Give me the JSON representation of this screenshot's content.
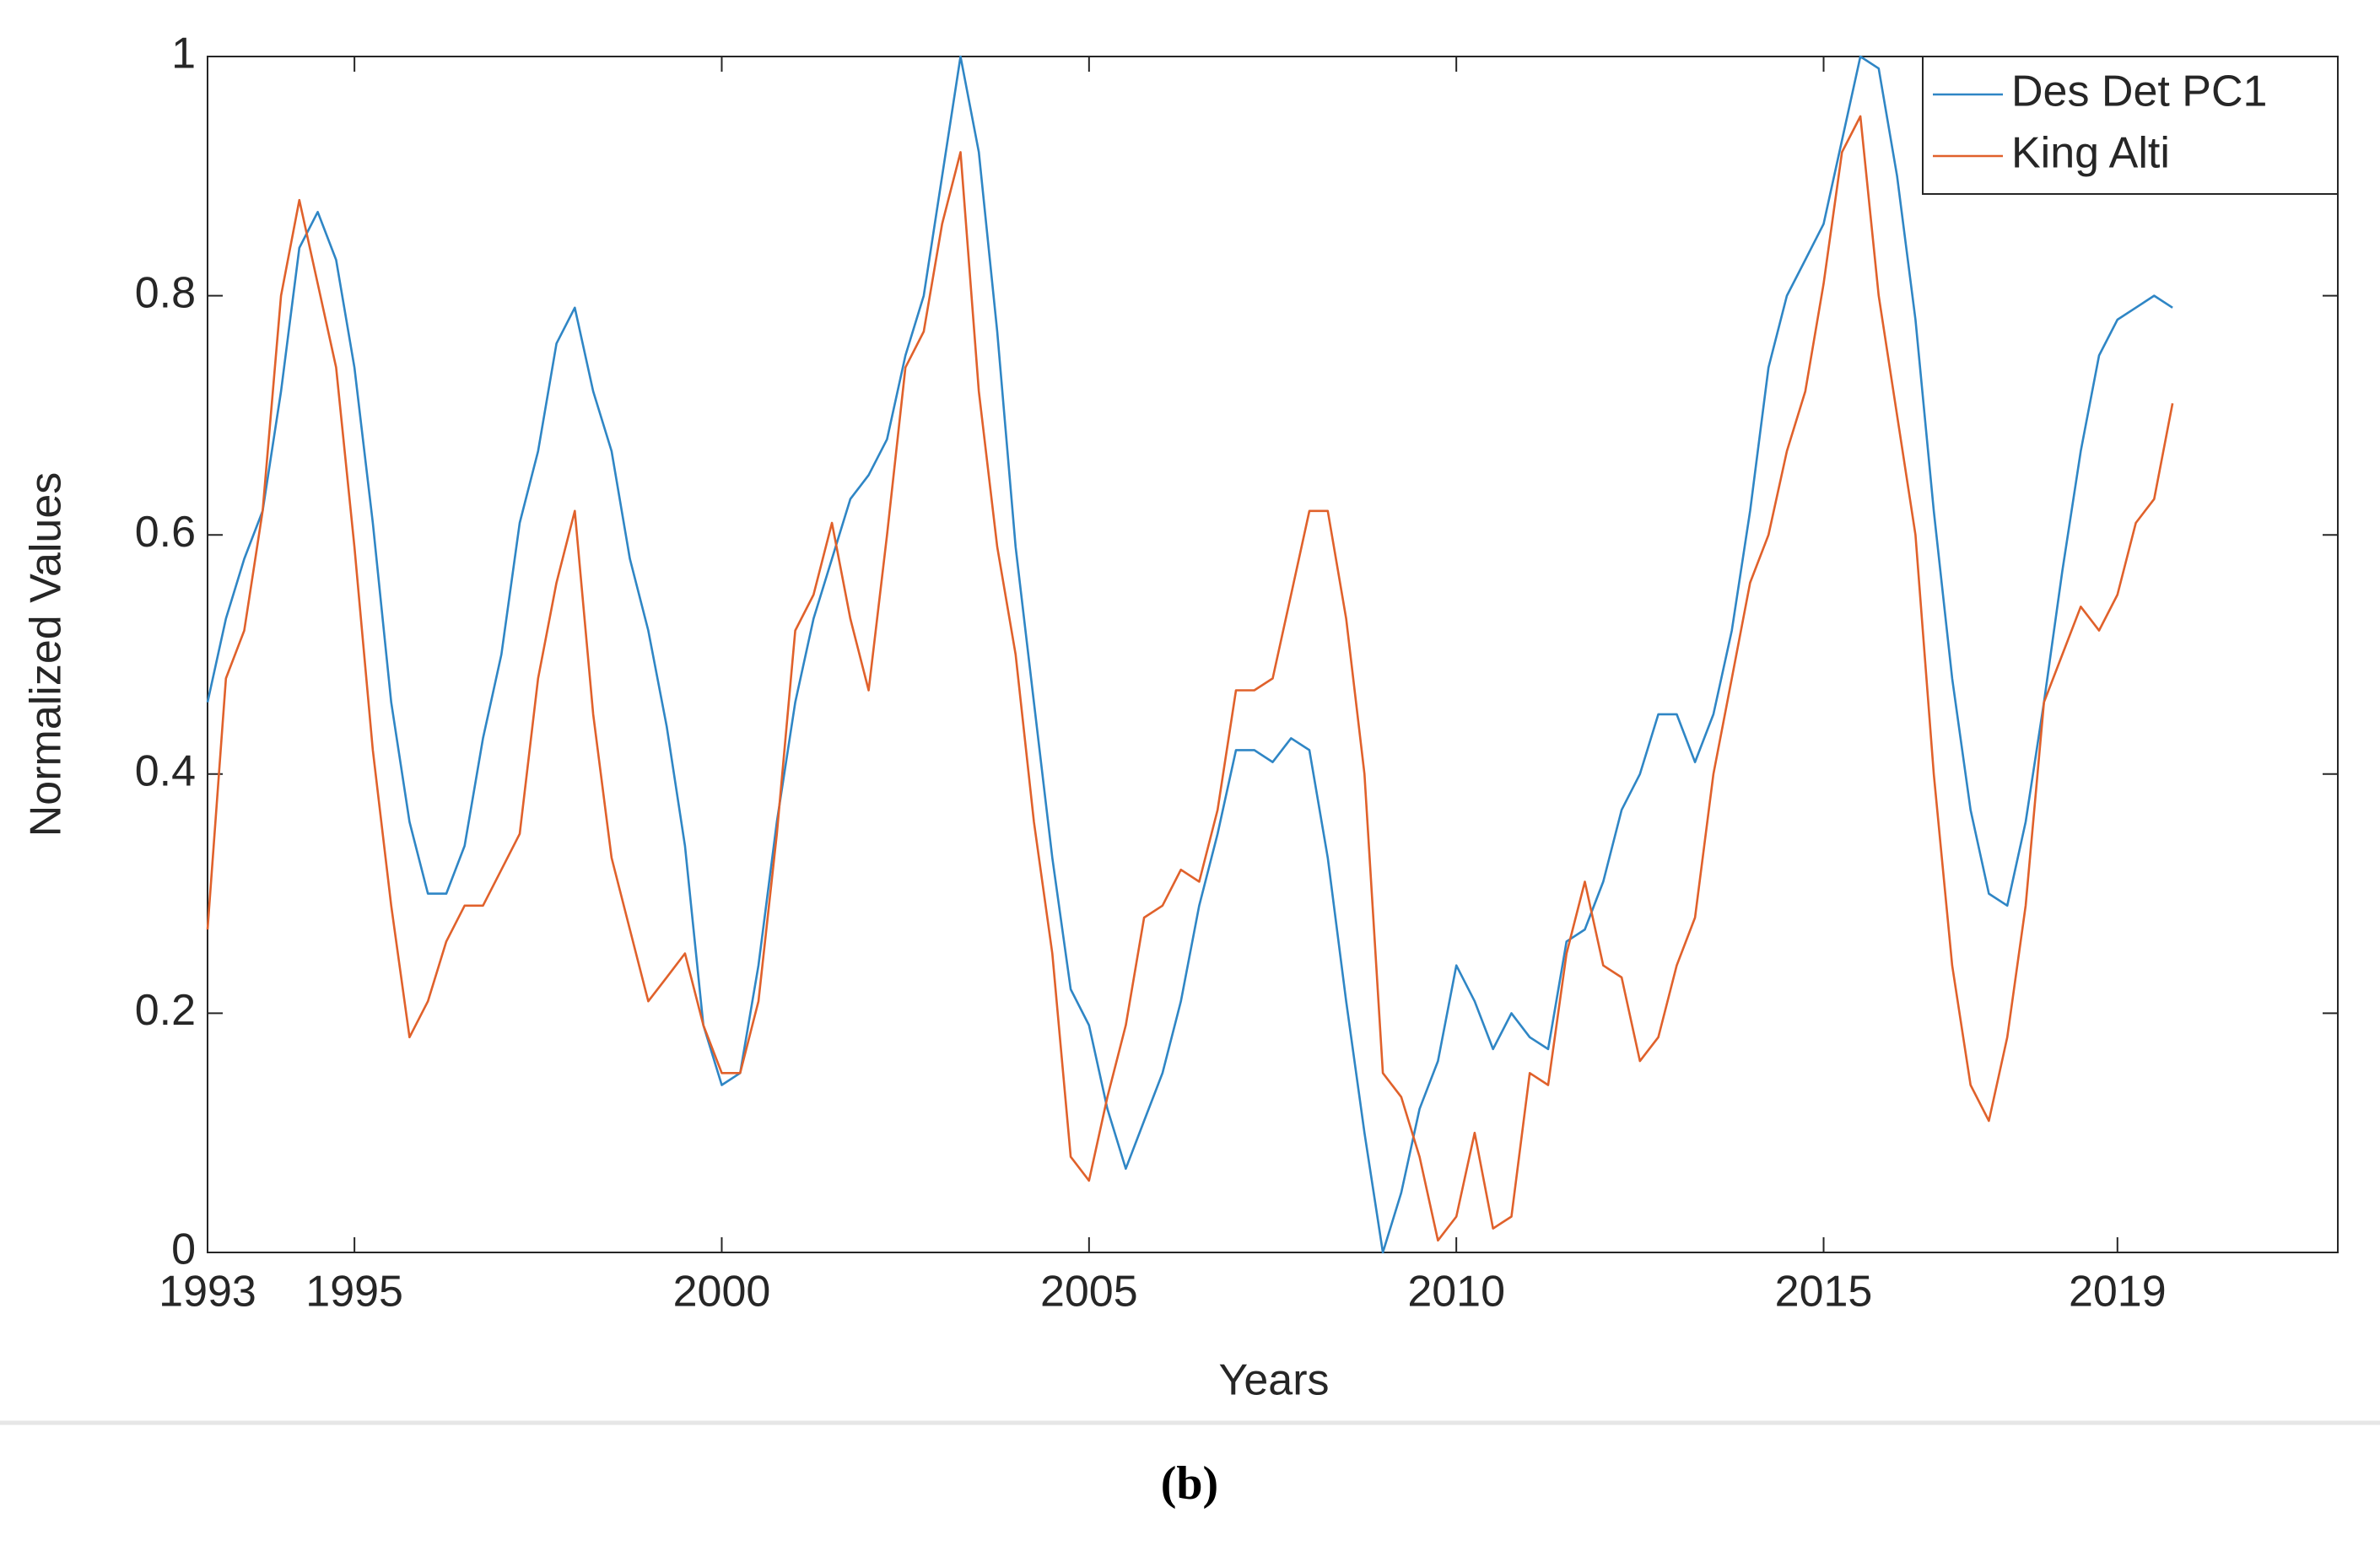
{
  "chart_data": {
    "type": "line",
    "x_label": "Years",
    "y_label": "Normalized Values",
    "caption": "(b)",
    "x": [
      1993,
      1993.25,
      1993.5,
      1993.75,
      1994,
      1994.25,
      1994.5,
      1994.75,
      1995,
      1995.25,
      1995.5,
      1995.75,
      1996,
      1996.25,
      1996.5,
      1996.75,
      1997,
      1997.25,
      1997.5,
      1997.75,
      1998,
      1998.25,
      1998.5,
      1998.75,
      1999,
      1999.25,
      1999.5,
      1999.75,
      2000,
      2000.25,
      2000.5,
      2000.75,
      2001,
      2001.25,
      2001.5,
      2001.75,
      2002,
      2002.25,
      2002.5,
      2002.75,
      2003,
      2003.25,
      2003.5,
      2003.75,
      2004,
      2004.25,
      2004.5,
      2004.75,
      2005,
      2005.25,
      2005.5,
      2005.75,
      2006,
      2006.25,
      2006.5,
      2006.75,
      2007,
      2007.25,
      2007.5,
      2007.75,
      2008,
      2008.25,
      2008.5,
      2008.75,
      2009,
      2009.25,
      2009.5,
      2009.75,
      2010,
      2010.25,
      2010.5,
      2010.75,
      2011,
      2011.25,
      2011.5,
      2011.75,
      2012,
      2012.25,
      2012.5,
      2012.75,
      2013,
      2013.25,
      2013.5,
      2013.75,
      2014,
      2014.25,
      2014.5,
      2014.75,
      2015,
      2015.25,
      2015.5,
      2015.75,
      2016,
      2016.25,
      2016.5,
      2016.75,
      2017,
      2017.25,
      2017.5,
      2017.75,
      2018,
      2018.25,
      2018.5,
      2018.75,
      2019,
      2019.25,
      2019.5,
      2019.75
    ],
    "series": [
      {
        "name": "Des Det PC1",
        "color": "#2f86c5",
        "values": [
          0.46,
          0.53,
          0.58,
          0.62,
          0.72,
          0.84,
          0.87,
          0.83,
          0.74,
          0.61,
          0.46,
          0.36,
          0.3,
          0.3,
          0.34,
          0.43,
          0.5,
          0.61,
          0.67,
          0.76,
          0.79,
          0.72,
          0.67,
          0.58,
          0.52,
          0.44,
          0.34,
          0.19,
          0.14,
          0.15,
          0.24,
          0.36,
          0.46,
          0.53,
          0.58,
          0.63,
          0.65,
          0.68,
          0.75,
          0.8,
          0.9,
          1.0,
          0.92,
          0.77,
          0.59,
          0.46,
          0.33,
          0.22,
          0.19,
          0.12,
          0.07,
          0.11,
          0.15,
          0.21,
          0.29,
          0.35,
          0.42,
          0.42,
          0.41,
          0.43,
          0.42,
          0.33,
          0.21,
          0.1,
          0.0,
          0.05,
          0.12,
          0.16,
          0.24,
          0.21,
          0.17,
          0.2,
          0.18,
          0.17,
          0.26,
          0.27,
          0.31,
          0.37,
          0.4,
          0.45,
          0.45,
          0.41,
          0.45,
          0.52,
          0.62,
          0.74,
          0.8,
          0.83,
          0.86,
          0.93,
          1.0,
          0.99,
          0.9,
          0.78,
          0.62,
          0.48,
          0.37,
          0.3,
          0.29,
          0.36,
          0.46,
          0.57,
          0.67,
          0.75,
          0.78,
          0.79,
          0.8,
          0.79
        ]
      },
      {
        "name": "King Alti",
        "color": "#e0612b",
        "values": [
          0.27,
          0.48,
          0.52,
          0.62,
          0.8,
          0.88,
          0.81,
          0.74,
          0.59,
          0.42,
          0.29,
          0.18,
          0.21,
          0.26,
          0.29,
          0.29,
          0.32,
          0.35,
          0.48,
          0.56,
          0.62,
          0.45,
          0.33,
          0.27,
          0.21,
          0.23,
          0.25,
          0.19,
          0.15,
          0.15,
          0.21,
          0.35,
          0.52,
          0.55,
          0.61,
          0.53,
          0.47,
          0.6,
          0.74,
          0.77,
          0.86,
          0.92,
          0.72,
          0.59,
          0.5,
          0.36,
          0.25,
          0.08,
          0.06,
          0.13,
          0.19,
          0.28,
          0.29,
          0.32,
          0.31,
          0.37,
          0.47,
          0.47,
          0.48,
          0.55,
          0.62,
          0.62,
          0.53,
          0.4,
          0.15,
          0.13,
          0.08,
          0.01,
          0.03,
          0.1,
          0.02,
          0.03,
          0.15,
          0.14,
          0.25,
          0.31,
          0.24,
          0.23,
          0.16,
          0.18,
          0.24,
          0.28,
          0.4,
          0.48,
          0.56,
          0.6,
          0.67,
          0.72,
          0.81,
          0.92,
          0.95,
          0.8,
          0.7,
          0.6,
          0.4,
          0.24,
          0.14,
          0.11,
          0.18,
          0.29,
          0.46,
          0.5,
          0.54,
          0.52,
          0.55,
          0.61,
          0.63,
          0.71
        ]
      }
    ],
    "xlim": [
      1993,
      2022
    ],
    "xticks": [
      1993,
      1995,
      2000,
      2005,
      2010,
      2015,
      2019
    ],
    "ylim": [
      0,
      1
    ],
    "yticks": [
      0,
      0.2,
      0.4,
      0.6,
      0.8,
      1
    ],
    "legend": "top-right"
  }
}
